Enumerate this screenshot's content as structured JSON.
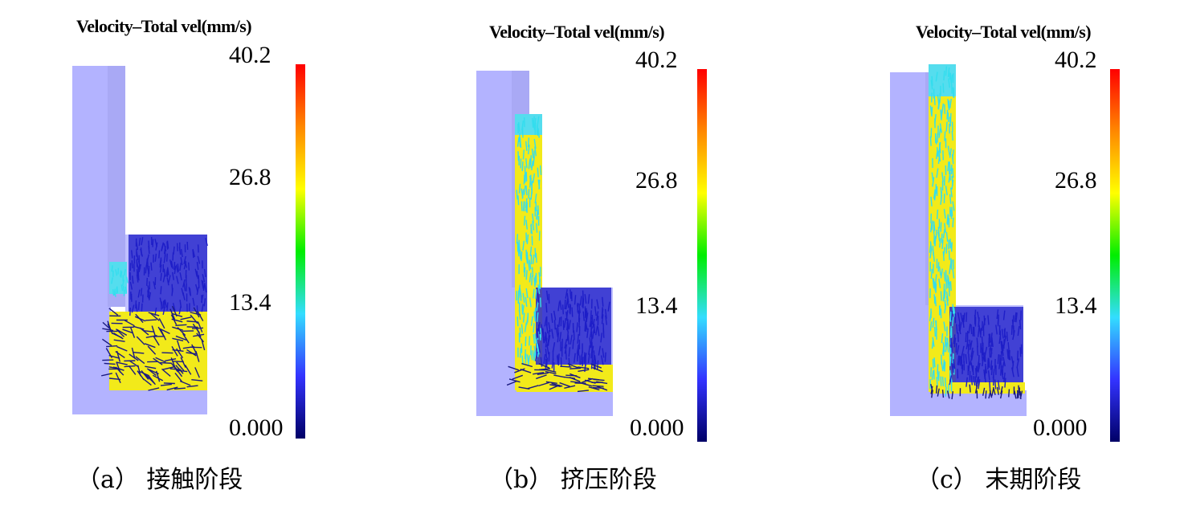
{
  "panels": [
    {
      "id": "a",
      "title": "Velocity–Total vel(mm/s)",
      "ticks": [
        "40.2",
        "26.8",
        "13.4",
        "0.000"
      ],
      "caption": "（a） 接触阶段"
    },
    {
      "id": "b",
      "title": "Velocity–Total vel(mm/s)",
      "ticks": [
        "40.2",
        "26.8",
        "13.4",
        "0.000"
      ],
      "caption": "（b） 挤压阶段"
    },
    {
      "id": "c",
      "title": "Velocity–Total vel(mm/s)",
      "ticks": [
        "40.2",
        "26.8",
        "13.4",
        "0.000"
      ],
      "caption": "（c） 末期阶段"
    }
  ],
  "colors": {
    "container": "#b3b3ff",
    "colormap": [
      "#ff0000",
      "#ff8800",
      "#ffff00",
      "#00ee00",
      "#33ddff",
      "#3333ff",
      "#000066"
    ],
    "vectors_slow": "#1e1ec8",
    "vectors_mid": "#33ddee",
    "vectors_fast": "#ffee00"
  }
}
